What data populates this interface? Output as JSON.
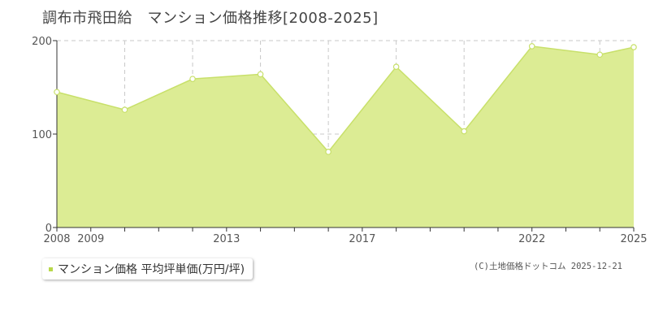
{
  "title": "調布市飛田給　マンション価格推移[2008-2025]",
  "legend": {
    "label": "マンション価格 平均坪単価(万円/坪)"
  },
  "credit": "(C)土地価格ドットコム 2025-12-21",
  "colors": {
    "area_fill": "#dcec94",
    "line": "#c8e06a",
    "point_fill": "#ffffff",
    "legend_swatch": "#b8d84a",
    "grid": "#c8c8c8",
    "axis": "#333333"
  },
  "chart_data": {
    "type": "area",
    "xlim": [
      2008,
      2025
    ],
    "ylim": [
      0,
      200
    ],
    "x_ticks": [
      2008,
      2009,
      2010,
      2011,
      2012,
      2013,
      2014,
      2015,
      2016,
      2017,
      2018,
      2019,
      2020,
      2021,
      2022,
      2023,
      2024,
      2025
    ],
    "x_tick_labels": [
      {
        "x": 2008,
        "label": "2008"
      },
      {
        "x": 2009,
        "label": "2009"
      },
      {
        "x": 2013,
        "label": "2013"
      },
      {
        "x": 2017,
        "label": "2017"
      },
      {
        "x": 2022,
        "label": "2022"
      },
      {
        "x": 2025,
        "label": "2025"
      }
    ],
    "y_ticks": [
      0,
      100,
      200
    ],
    "y_tick_labels": [
      "0",
      "100",
      "200"
    ],
    "grid": true,
    "series": [
      {
        "name": "マンション価格 平均坪単価(万円/坪)",
        "points": [
          {
            "x": 2008,
            "y": 145
          },
          {
            "x": 2010,
            "y": 126
          },
          {
            "x": 2012,
            "y": 159
          },
          {
            "x": 2014,
            "y": 164
          },
          {
            "x": 2016,
            "y": 81
          },
          {
            "x": 2018,
            "y": 172
          },
          {
            "x": 2020,
            "y": 103
          },
          {
            "x": 2022,
            "y": 194
          },
          {
            "x": 2024,
            "y": 185
          },
          {
            "x": 2025,
            "y": 193
          }
        ]
      }
    ]
  }
}
